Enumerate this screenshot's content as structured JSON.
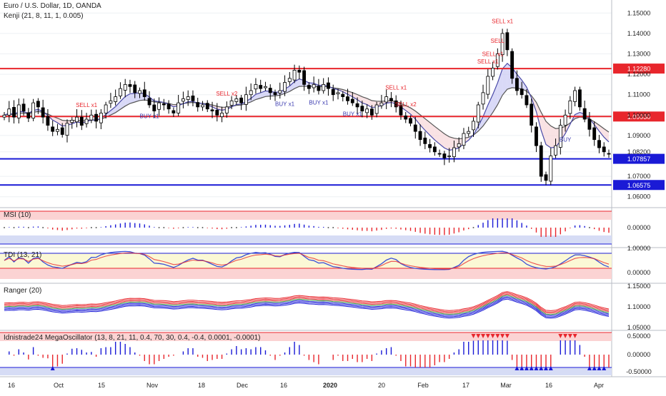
{
  "header": {
    "title": "Euro / U.S. Dollar, 1D, OANDA",
    "indicator": "Kenji (21, 8, 11, 1, 0.005)"
  },
  "panes": {
    "msi": "MSI (10)",
    "tdi": "TDI (13, 21)",
    "ranger": "Ranger (20)",
    "mega": "Idnistrade24 MegaOscillator (13, 8, 21, 11, 0.4, 70, 30, 0.4, -0.4, 0.0001, -0.0001)"
  },
  "chart_data": [
    {
      "type": "candlestick",
      "name": "price",
      "ylim": [
        1.055,
        1.155
      ],
      "y_ticks": [
        "1.15000",
        "1.14000",
        "1.13000",
        "1.12000",
        "1.11000",
        "1.10000",
        "1.09000",
        "1.08200",
        "1.07000",
        "1.06000"
      ],
      "y_tick_values": [
        1.15,
        1.14,
        1.13,
        1.12,
        1.11,
        1.1,
        1.09,
        1.082,
        1.07,
        1.06
      ],
      "x_ticks": [
        "16",
        "Oct",
        "15",
        "Nov",
        "18",
        "Dec",
        "16",
        "2020",
        "20",
        "Feb",
        "17",
        "Mar",
        "16",
        "Apr"
      ],
      "levels": [
        {
          "label": "1.12280",
          "value": 1.1228,
          "color": "#e8262c"
        },
        {
          "label": "1.09930",
          "value": 1.0993,
          "color": "#e8262c"
        },
        {
          "label": "1.07857",
          "value": 1.07857,
          "color": "#1a1ad6"
        },
        {
          "label": "1.06575",
          "value": 1.06575,
          "color": "#1a1ad6"
        }
      ],
      "closes": [
        1.1,
        1.103,
        1.099,
        1.105,
        1.102,
        1.0985,
        1.106,
        1.104,
        1.099,
        1.095,
        1.092,
        1.093,
        1.0905,
        1.096,
        1.0975,
        1.099,
        1.095,
        1.098,
        1.1,
        1.097,
        1.101,
        1.105,
        1.107,
        1.109,
        1.113,
        1.115,
        1.114,
        1.111,
        1.112,
        1.109,
        1.105,
        1.102,
        1.106,
        1.105,
        1.103,
        1.101,
        1.106,
        1.108,
        1.109,
        1.107,
        1.104,
        1.105,
        1.103,
        1.102,
        1.1,
        1.101,
        1.104,
        1.107,
        1.108,
        1.106,
        1.11,
        1.112,
        1.115,
        1.113,
        1.114,
        1.111,
        1.11,
        1.112,
        1.116,
        1.118,
        1.122,
        1.121,
        1.115,
        1.113,
        1.115,
        1.112,
        1.115,
        1.113,
        1.11,
        1.111,
        1.109,
        1.107,
        1.106,
        1.104,
        1.102,
        1.103,
        1.1,
        1.105,
        1.106,
        1.109,
        1.107,
        1.104,
        1.1,
        1.098,
        1.096,
        1.092,
        1.088,
        1.086,
        1.084,
        1.082,
        1.081,
        1.079,
        1.08,
        1.084,
        1.086,
        1.091,
        1.092,
        1.097,
        1.105,
        1.111,
        1.119,
        1.123,
        1.13,
        1.14,
        1.132,
        1.118,
        1.112,
        1.11,
        1.105,
        1.095,
        1.085,
        1.07,
        1.068,
        1.08,
        1.085,
        1.095,
        1.1,
        1.107,
        1.112,
        1.104,
        1.098,
        1.093,
        1.088,
        1.084,
        1.082,
        1.081
      ],
      "series": [
        {
          "name": "",
          "color": "#4a4aa8",
          "values": []
        },
        {
          "name": "",
          "color": "#555555",
          "values": []
        }
      ]
    },
    {
      "type": "bar",
      "name": "msi",
      "ylim": [
        -1,
        1
      ],
      "y_ticks": [
        "0.00000"
      ]
    },
    {
      "type": "line",
      "name": "tdi",
      "y_ticks": [
        "1.00000",
        "0.00000"
      ]
    },
    {
      "type": "line",
      "name": "ranger",
      "y_ticks": [
        "1.15000",
        "1.10000",
        "1.05000"
      ]
    },
    {
      "type": "bar",
      "name": "mega",
      "y_ticks": [
        "0.50000",
        "0.00000",
        "-0.50000"
      ]
    }
  ],
  "annotations": {
    "sell": [
      "SELL x1",
      "SELL x2",
      "SELL x1",
      "SELL x2",
      "SELL x1",
      "SELL x1",
      "SELL",
      "SELL x1"
    ],
    "buy": [
      "BUY x1",
      "BUY x1",
      "BUY x1",
      "BUY x1",
      "BUY"
    ]
  },
  "colors": {
    "up": "#ffffff",
    "down": "#000000",
    "bull": "#1a1ad6",
    "bear": "#e8262c",
    "grid": "#eef0f4"
  }
}
